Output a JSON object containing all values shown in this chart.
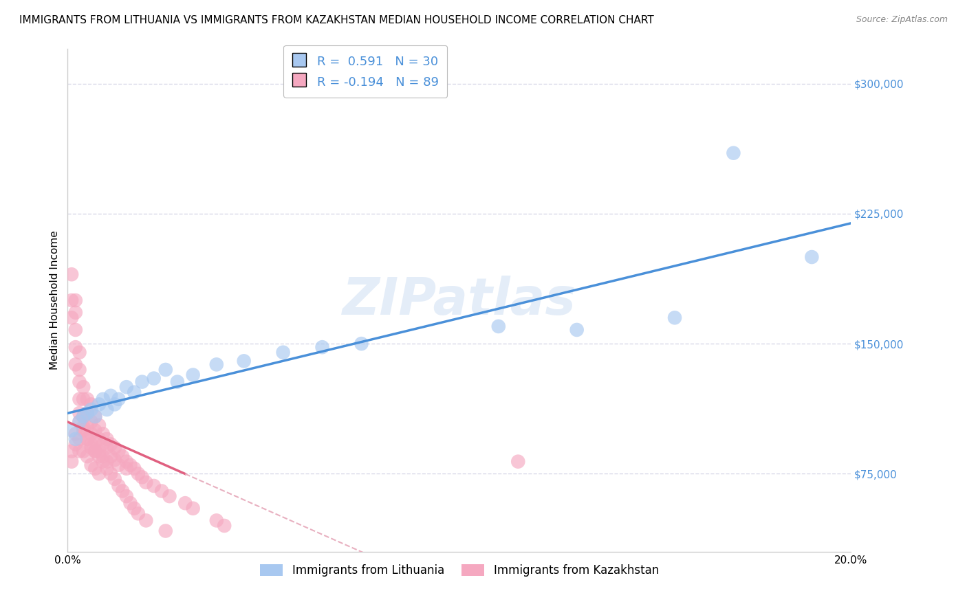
{
  "title": "IMMIGRANTS FROM LITHUANIA VS IMMIGRANTS FROM KAZAKHSTAN MEDIAN HOUSEHOLD INCOME CORRELATION CHART",
  "source": "Source: ZipAtlas.com",
  "ylabel": "Median Household Income",
  "legend_bottom": [
    "Immigrants from Lithuania",
    "Immigrants from Kazakhstan"
  ],
  "xlim": [
    0.0,
    0.2
  ],
  "ylim": [
    30000,
    320000
  ],
  "yticks": [
    75000,
    150000,
    225000,
    300000
  ],
  "ytick_labels": [
    "$75,000",
    "$150,000",
    "$225,000",
    "$300,000"
  ],
  "xticks": [
    0.0,
    0.05,
    0.1,
    0.15,
    0.2
  ],
  "xtick_labels": [
    "0.0%",
    "",
    "",
    "",
    "20.0%"
  ],
  "watermark": "ZIPatlas",
  "R_lithuania": 0.591,
  "N_lithuania": 30,
  "R_kazakhstan": -0.194,
  "N_kazakhstan": 89,
  "color_lithuania": "#a8c8f0",
  "color_kazakhstan": "#f5a8c0",
  "line_color_lithuania": "#4a90d9",
  "line_color_kazakhstan": "#e06080",
  "line_color_kazakhstan_dash": "#e8b0c0",
  "background_color": "#ffffff",
  "grid_color": "#d8d8e8",
  "title_fontsize": 11,
  "axis_label_fontsize": 11,
  "tick_fontsize": 11,
  "legend_box_color_lithuania": "#a8c8f0",
  "legend_box_color_kazakhstan": "#f5a8c0",
  "legend_text_color": "#4a90d9",
  "lithuania_x": [
    0.001,
    0.002,
    0.003,
    0.004,
    0.005,
    0.006,
    0.007,
    0.008,
    0.009,
    0.01,
    0.011,
    0.012,
    0.013,
    0.015,
    0.017,
    0.019,
    0.022,
    0.025,
    0.028,
    0.032,
    0.038,
    0.045,
    0.055,
    0.065,
    0.075,
    0.11,
    0.13,
    0.155,
    0.17,
    0.19
  ],
  "lithuania_y": [
    100000,
    95000,
    105000,
    108000,
    110000,
    112000,
    108000,
    115000,
    118000,
    112000,
    120000,
    115000,
    118000,
    125000,
    122000,
    128000,
    130000,
    135000,
    128000,
    132000,
    138000,
    140000,
    145000,
    148000,
    150000,
    160000,
    158000,
    165000,
    260000,
    200000
  ],
  "kazakhstan_x": [
    0.001,
    0.001,
    0.001,
    0.002,
    0.002,
    0.002,
    0.002,
    0.002,
    0.003,
    0.003,
    0.003,
    0.003,
    0.003,
    0.004,
    0.004,
    0.004,
    0.004,
    0.005,
    0.005,
    0.005,
    0.005,
    0.006,
    0.006,
    0.006,
    0.006,
    0.007,
    0.007,
    0.007,
    0.007,
    0.008,
    0.008,
    0.008,
    0.009,
    0.009,
    0.009,
    0.01,
    0.01,
    0.01,
    0.011,
    0.011,
    0.012,
    0.012,
    0.013,
    0.013,
    0.014,
    0.015,
    0.015,
    0.016,
    0.017,
    0.018,
    0.019,
    0.02,
    0.022,
    0.024,
    0.026,
    0.03,
    0.032,
    0.038,
    0.04,
    0.001,
    0.001,
    0.002,
    0.002,
    0.003,
    0.003,
    0.003,
    0.004,
    0.004,
    0.005,
    0.005,
    0.006,
    0.006,
    0.007,
    0.007,
    0.008,
    0.008,
    0.009,
    0.01,
    0.011,
    0.012,
    0.013,
    0.014,
    0.015,
    0.016,
    0.017,
    0.018,
    0.02,
    0.025,
    0.115
  ],
  "kazakhstan_y": [
    190000,
    175000,
    165000,
    175000,
    168000,
    158000,
    148000,
    138000,
    145000,
    135000,
    128000,
    118000,
    110000,
    125000,
    118000,
    108000,
    100000,
    118000,
    110000,
    102000,
    95000,
    115000,
    105000,
    98000,
    90000,
    108000,
    100000,
    93000,
    88000,
    103000,
    95000,
    88000,
    98000,
    92000,
    85000,
    95000,
    90000,
    82000,
    92000,
    85000,
    90000,
    83000,
    88000,
    80000,
    85000,
    82000,
    78000,
    80000,
    78000,
    75000,
    73000,
    70000,
    68000,
    65000,
    62000,
    58000,
    55000,
    48000,
    45000,
    88000,
    82000,
    98000,
    92000,
    88000,
    105000,
    95000,
    102000,
    88000,
    95000,
    85000,
    92000,
    80000,
    88000,
    78000,
    85000,
    75000,
    82000,
    78000,
    75000,
    72000,
    68000,
    65000,
    62000,
    58000,
    55000,
    52000,
    48000,
    42000,
    82000
  ]
}
